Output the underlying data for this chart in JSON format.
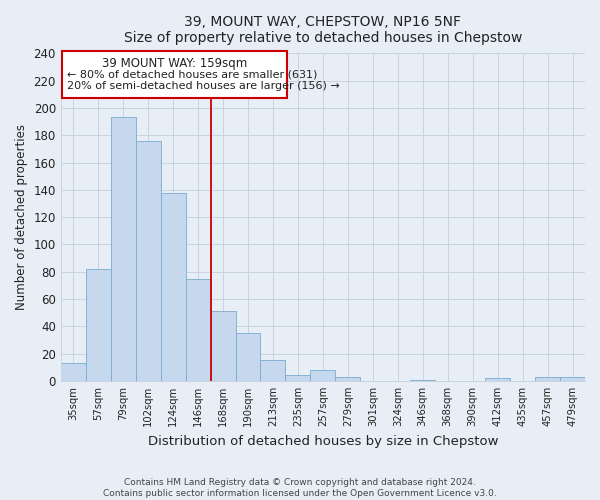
{
  "title": "39, MOUNT WAY, CHEPSTOW, NP16 5NF",
  "subtitle": "Size of property relative to detached houses in Chepstow",
  "xlabel": "Distribution of detached houses by size in Chepstow",
  "ylabel": "Number of detached properties",
  "bar_labels": [
    "35sqm",
    "57sqm",
    "79sqm",
    "102sqm",
    "124sqm",
    "146sqm",
    "168sqm",
    "190sqm",
    "213sqm",
    "235sqm",
    "257sqm",
    "279sqm",
    "301sqm",
    "324sqm",
    "346sqm",
    "368sqm",
    "390sqm",
    "412sqm",
    "435sqm",
    "457sqm",
    "479sqm"
  ],
  "bar_values": [
    13,
    82,
    193,
    176,
    138,
    75,
    51,
    35,
    15,
    4,
    8,
    3,
    0,
    0,
    1,
    0,
    0,
    2,
    0,
    3,
    3
  ],
  "bar_color": "#c5d8ee",
  "bar_edge_color": "#7aaad0",
  "property_line_color": "#cc0000",
  "property_line_index": 5.5,
  "ylim": [
    0,
    240
  ],
  "yticks": [
    0,
    20,
    40,
    60,
    80,
    100,
    120,
    140,
    160,
    180,
    200,
    220,
    240
  ],
  "annotation_text_line1": "39 MOUNT WAY: 159sqm",
  "annotation_text_line2": "← 80% of detached houses are smaller (631)",
  "annotation_text_line3": "20% of semi-detached houses are larger (156) →",
  "footer_line1": "Contains HM Land Registry data © Crown copyright and database right 2024.",
  "footer_line2": "Contains public sector information licensed under the Open Government Licence v3.0.",
  "background_color": "#e8eef5",
  "plot_background": "#e8eef5",
  "grid_color": "#c8d4e0",
  "title_color": "#222222",
  "text_color": "#222222"
}
